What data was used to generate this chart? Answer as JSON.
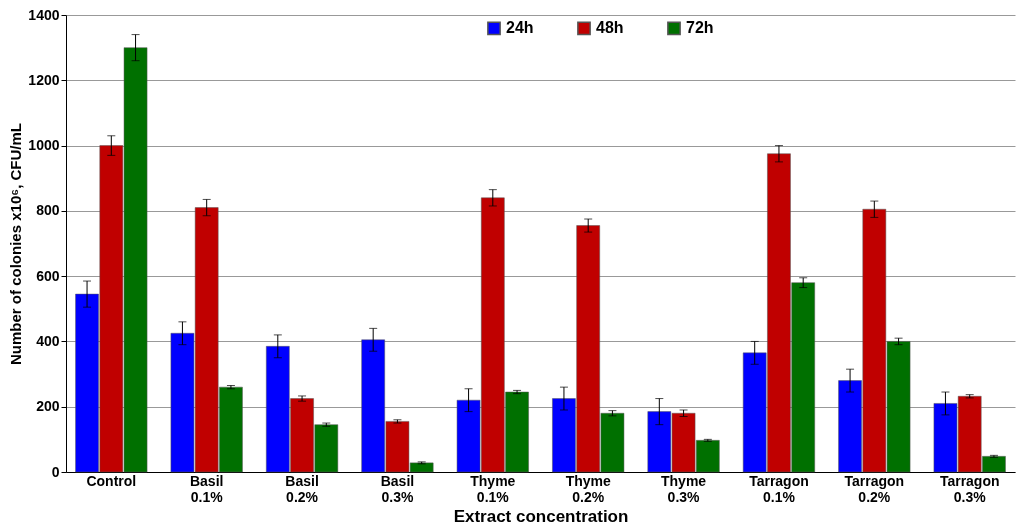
{
  "chart_data": {
    "type": "bar",
    "xlabel": "Extract concentration",
    "ylabel": "Number of colonies x10⁶, CFU/mL",
    "categories": [
      "Control",
      "Basil 0.1%",
      "Basil 0.2%",
      "Basil 0.3%",
      "Thyme 0.1%",
      "Thyme 0.2%",
      "Thyme 0.3%",
      "Tarragon 0.1%",
      "Tarragon 0.2%",
      "Tarragon 0.3%"
    ],
    "series": [
      {
        "name": "24h",
        "color": "#0000ff",
        "values": [
          545,
          425,
          385,
          405,
          220,
          225,
          185,
          365,
          280,
          210
        ],
        "errors": [
          40,
          35,
          35,
          35,
          35,
          35,
          40,
          35,
          35,
          35
        ]
      },
      {
        "name": "48h",
        "color": "#c00000",
        "values": [
          1000,
          810,
          225,
          155,
          840,
          755,
          180,
          975,
          805,
          232
        ],
        "errors": [
          30,
          25,
          8,
          5,
          25,
          20,
          10,
          25,
          25,
          5
        ]
      },
      {
        "name": "72h",
        "color": "#007000",
        "values": [
          1300,
          260,
          145,
          28,
          245,
          180,
          97,
          580,
          400,
          48
        ],
        "errors": [
          40,
          5,
          5,
          3,
          5,
          8,
          3,
          15,
          10,
          3
        ]
      }
    ],
    "ylim": [
      0,
      1400
    ],
    "yticks": [
      0,
      200,
      400,
      600,
      800,
      1000,
      1200,
      1400
    ],
    "grid": "y",
    "legend": "top"
  }
}
